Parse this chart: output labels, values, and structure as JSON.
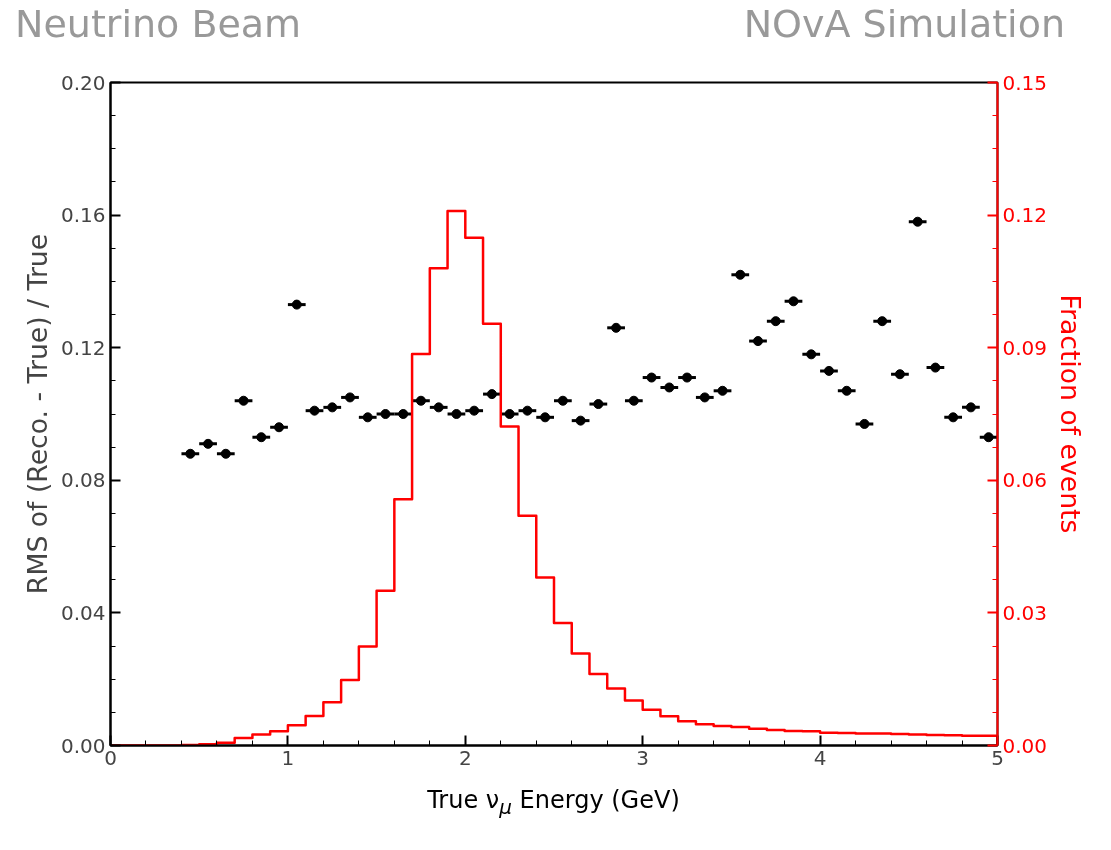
{
  "chart_data": {
    "type": "scatter",
    "title": "Neutrino Beam",
    "annotations": [
      "NOvA Simulation"
    ],
    "xlabel": "True ν$_{μ}$ Energy (GeV)",
    "ylabel": "RMS of (Reco. - True) / True",
    "y2label": "Fraction of events",
    "xlim": [
      0,
      5
    ],
    "xticks": [
      0,
      1,
      2,
      3,
      4,
      5
    ],
    "ylim": [
      0,
      0.2
    ],
    "yticks": [
      {
        "value": 0,
        "label": "0.00"
      },
      {
        "value": 0.04,
        "label": "0.04"
      },
      {
        "value": 0.08,
        "label": "0.08"
      },
      {
        "value": 0.12,
        "label": "0.12"
      },
      {
        "value": 0.16,
        "label": "0.16"
      },
      {
        "value": 0.2,
        "label": "0.20"
      }
    ],
    "y2lim": [
      0,
      0.15
    ],
    "y2ticks": [
      {
        "value": 0,
        "label": "0.00"
      },
      {
        "value": 0.03,
        "label": "0.03"
      },
      {
        "value": 0.06,
        "label": "0.06"
      },
      {
        "value": 0.09,
        "label": "0.09"
      },
      {
        "value": 0.12,
        "label": "0.12"
      },
      {
        "value": 0.15,
        "label": "0.15"
      }
    ],
    "marker": "circle",
    "grid": false,
    "series": [
      {
        "color": "#000000",
        "x": [
          0.45,
          0.55,
          0.65,
          0.75,
          0.85,
          0.95,
          1.05,
          1.15,
          1.25,
          1.35,
          1.45,
          1.55,
          1.65,
          1.75,
          1.85,
          1.95,
          2.05,
          2.15,
          2.25,
          2.35,
          2.45,
          2.55,
          2.65,
          2.75,
          2.85,
          2.95,
          3.05,
          3.15,
          3.25,
          3.35,
          3.45,
          3.55,
          3.65,
          3.75,
          3.85,
          3.95,
          4.05,
          4.15,
          4.25,
          4.35,
          4.45,
          4.55,
          4.65,
          4.75,
          4.85,
          4.95
        ],
        "values": [
          0.088,
          0.091,
          0.088,
          0.104,
          0.093,
          0.096,
          0.133,
          0.101,
          0.102,
          0.105,
          0.099,
          0.1,
          0.1,
          0.104,
          0.102,
          0.1,
          0.101,
          0.106,
          0.1,
          0.101,
          0.099,
          0.104,
          0.098,
          0.103,
          0.126,
          0.104,
          0.111,
          0.108,
          0.111,
          0.105,
          0.107,
          0.142,
          0.122,
          0.128,
          0.134,
          0.118,
          0.113,
          0.107,
          0.097,
          0.128,
          0.112,
          0.158,
          0.114,
          0.099,
          0.102,
          0.093
        ],
        "xerrors": [
          0.05,
          0.05,
          0.05,
          0.05,
          0.05,
          0.05,
          0.05,
          0.05,
          0.05,
          0.05,
          0.05,
          0.05,
          0.05,
          0.05,
          0.05,
          0.05,
          0.05,
          0.05,
          0.05,
          0.05,
          0.05,
          0.05,
          0.05,
          0.05,
          0.05,
          0.05,
          0.05,
          0.05,
          0.05,
          0.05,
          0.05,
          0.05,
          0.05,
          0.05,
          0.05,
          0.05,
          0.05,
          0.05,
          0.05,
          0.05,
          0.05,
          0.05,
          0.05,
          0.05,
          0.05,
          0.05
        ]
      },
      {
        "type": "histogram",
        "axis": "y2",
        "color": "#ff0000",
        "bins": [
          0,
          0.1,
          0.2,
          0.3,
          0.4,
          0.5,
          0.6,
          0.7,
          0.8,
          0.9,
          1.0,
          1.1,
          1.2,
          1.3,
          1.4,
          1.5,
          1.6,
          1.7,
          1.8,
          1.9,
          2.0,
          2.1,
          2.2,
          2.3,
          2.4,
          2.5,
          2.6,
          2.7,
          2.8,
          2.9,
          3.0,
          3.1,
          3.2,
          3.3,
          3.4,
          3.5,
          3.6,
          3.7,
          3.8,
          3.9,
          4.0,
          4.1,
          4.2,
          4.3,
          4.4,
          4.5,
          4.6,
          4.7,
          4.8,
          4.9,
          5.0
        ],
        "values": [
          0,
          0,
          0,
          0,
          0.0001,
          0.0003,
          0.0006,
          0.0017,
          0.0025,
          0.0032,
          0.0046,
          0.0067,
          0.0098,
          0.0148,
          0.0224,
          0.035,
          0.0557,
          0.0886,
          0.108,
          0.1209,
          0.1149,
          0.0954,
          0.0722,
          0.052,
          0.038,
          0.0277,
          0.0208,
          0.0162,
          0.0129,
          0.0102,
          0.0081,
          0.0066,
          0.0055,
          0.0048,
          0.0044,
          0.0042,
          0.0038,
          0.0035,
          0.0033,
          0.0032,
          0.0029,
          0.0028,
          0.0027,
          0.0027,
          0.0026,
          0.0025,
          0.0024,
          0.0023,
          0.0022,
          0.0022
        ]
      }
    ]
  }
}
